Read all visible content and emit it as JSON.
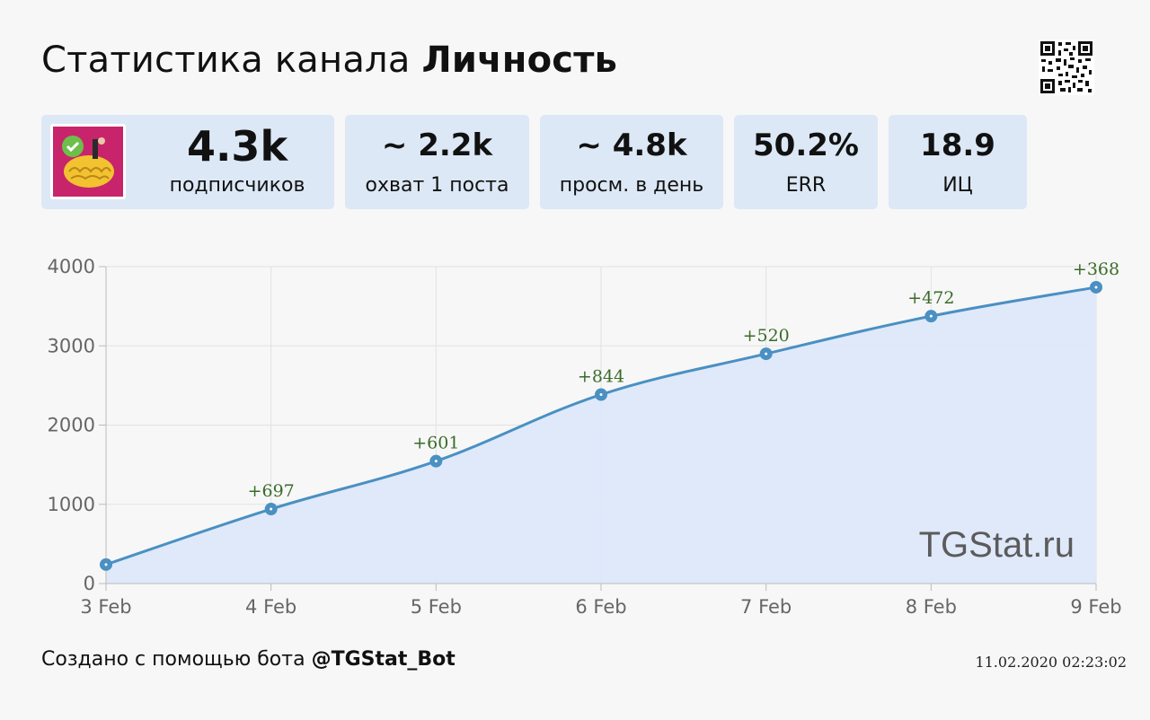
{
  "header": {
    "title_prefix": "Статистика канала",
    "channel_name": "Личность",
    "qr_icon": "qr-code-icon"
  },
  "stats": [
    {
      "value": "4.3k",
      "label": "подписчиков"
    },
    {
      "value": "~ 2.2k",
      "label": "охват 1 поста"
    },
    {
      "value": "~ 4.8k",
      "label": "просм. в день"
    },
    {
      "value": "50.2%",
      "label": "ERR"
    },
    {
      "value": "18.9",
      "label": "ИЦ"
    }
  ],
  "colors": {
    "card_bg": "#dde8f6",
    "line": "#4a90c2",
    "area": "#dde8fa",
    "delta_text": "#3a6b2a"
  },
  "chart_data": {
    "type": "area",
    "title": "",
    "xlabel": "",
    "ylabel": "",
    "x": [
      "3 Feb",
      "4 Feb",
      "5 Feb",
      "6 Feb",
      "7 Feb",
      "8 Feb",
      "9 Feb"
    ],
    "values": [
      240,
      940,
      1545,
      2385,
      2900,
      3375,
      3740
    ],
    "deltas": [
      "",
      "+697",
      "+601",
      "+844",
      "+520",
      "+472",
      "+368"
    ],
    "yticks": [
      0,
      1000,
      2000,
      3000,
      4000
    ],
    "ylim": [
      0,
      4000
    ],
    "grid": true,
    "watermark": "TGStat.ru"
  },
  "footer": {
    "prefix": "Создано с помощью бота",
    "bot": "@TGStat_Bot",
    "timestamp": "11.02.2020 02:23:02"
  }
}
